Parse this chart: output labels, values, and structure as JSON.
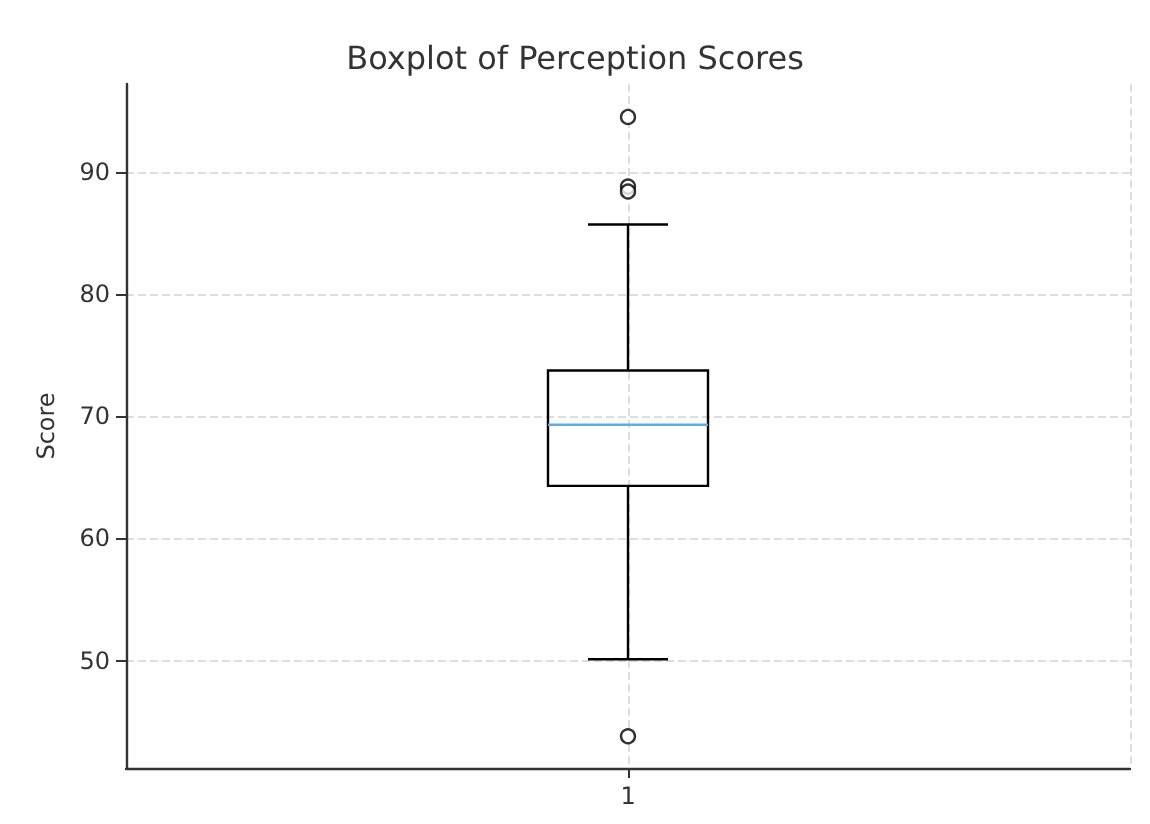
{
  "chart_data": {
    "type": "box",
    "title": "Boxplot of Perception Scores",
    "ylabel": "Score",
    "categories": [
      "1"
    ],
    "series": [
      {
        "color": "#000000",
        "boxes": [
          {
            "low": 50.1,
            "q1": 64.3,
            "median": 69.3,
            "q3": 73.75,
            "high": 85.7,
            "outliers": [
              94.5,
              88.8,
              88.4,
              43.8
            ]
          }
        ]
      }
    ],
    "ylim": [
      41.2,
      97.2
    ],
    "yticks": [
      50,
      60,
      70,
      80,
      90
    ],
    "grid": true
  }
}
